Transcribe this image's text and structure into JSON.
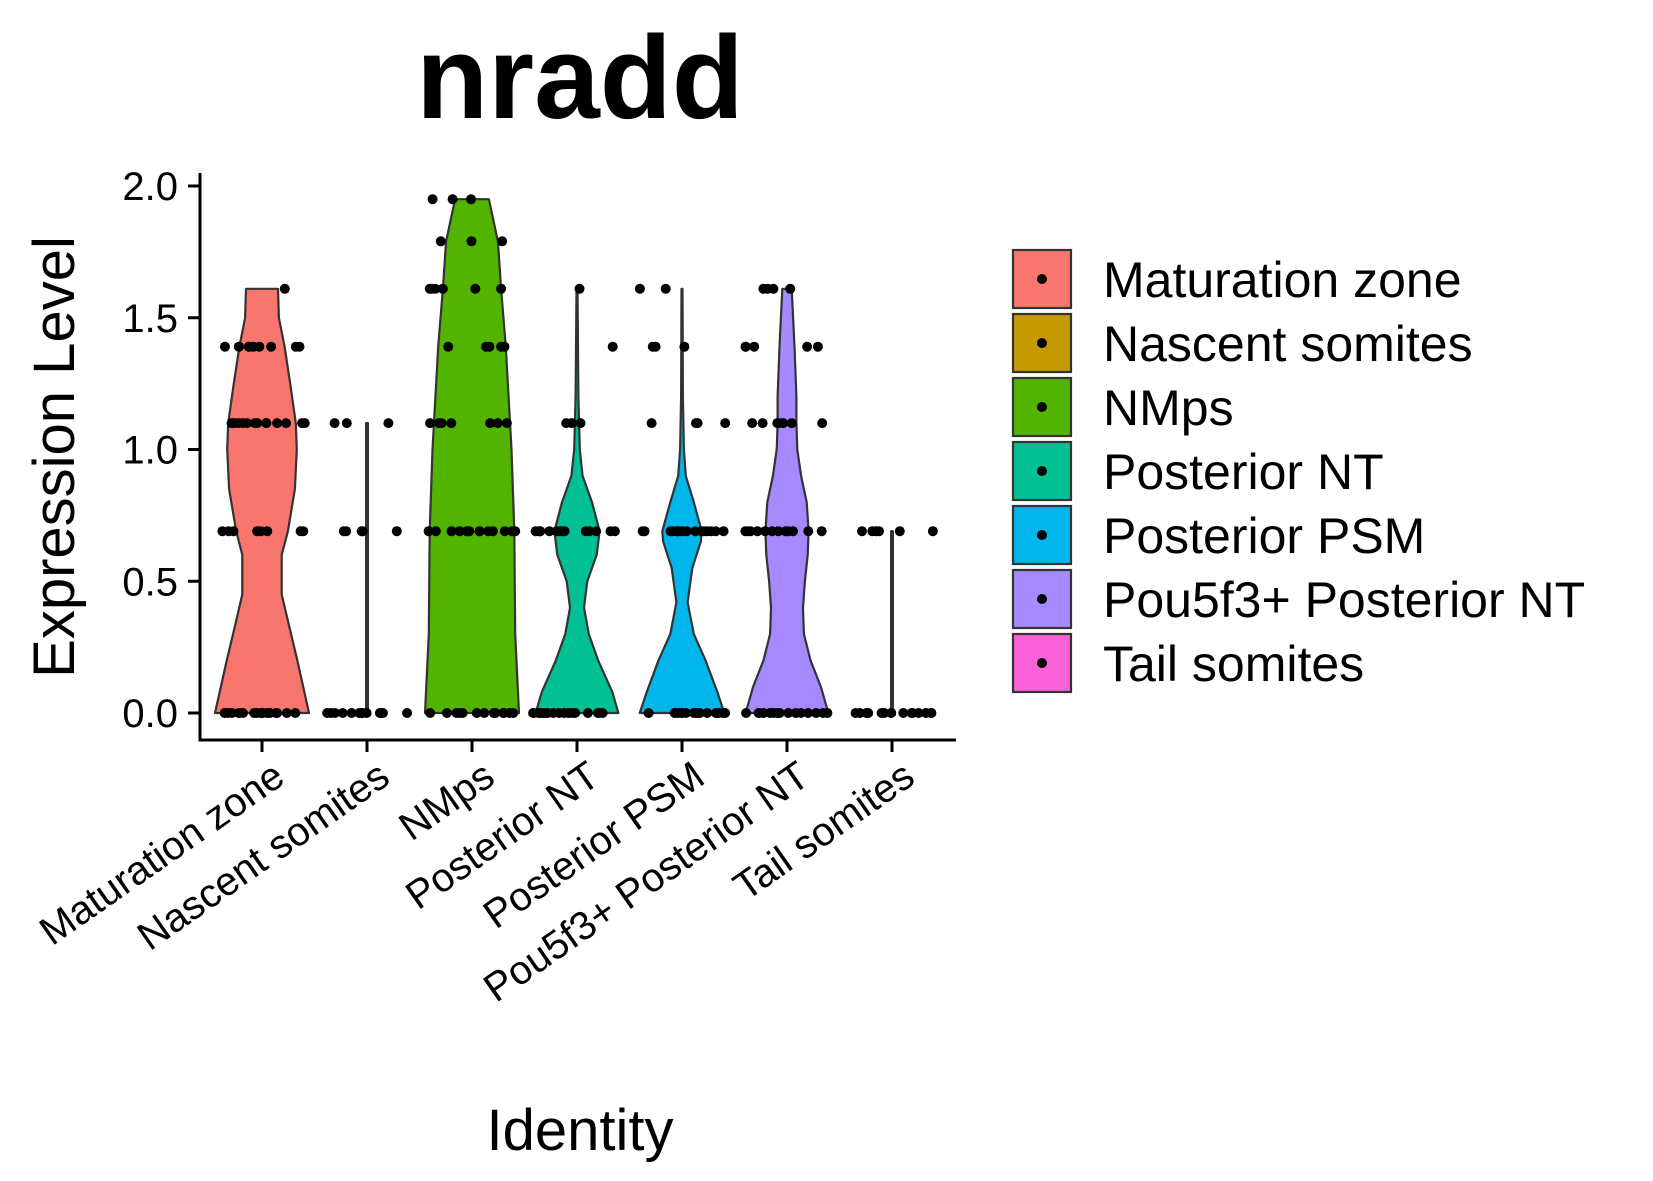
{
  "chart_data": {
    "type": "violin",
    "title": "nradd",
    "xlabel": "Identity",
    "ylabel": "Expression Level",
    "ylim": [
      0,
      2.0
    ],
    "yticks": [
      "0.0",
      "0.5",
      "1.0",
      "1.5",
      "2.0"
    ],
    "ytick_values": [
      0,
      0.5,
      1.0,
      1.5,
      2.0
    ],
    "categories": [
      "Maturation zone",
      "Nascent somites",
      "NMps",
      "Posterior NT",
      "Posterior PSM",
      "Pou5f3+ Posterior NT",
      "Tail somites"
    ],
    "colors": [
      "#F8766D",
      "#C49A00",
      "#53B400",
      "#00C094",
      "#00B6EB",
      "#A58AFF",
      "#FB61D7"
    ],
    "legend_position": "right",
    "grid": false,
    "violins": [
      {
        "name": "Maturation zone",
        "max": 1.61,
        "profile": [
          [
            0,
            1.0
          ],
          [
            0.2,
            0.75
          ],
          [
            0.35,
            0.55
          ],
          [
            0.45,
            0.42
          ],
          [
            0.6,
            0.42
          ],
          [
            0.69,
            0.55
          ],
          [
            0.85,
            0.7
          ],
          [
            1.0,
            0.74
          ],
          [
            1.1,
            0.72
          ],
          [
            1.25,
            0.6
          ],
          [
            1.39,
            0.48
          ],
          [
            1.5,
            0.36
          ],
          [
            1.61,
            0.34
          ]
        ]
      },
      {
        "name": "Nascent somites",
        "max": 1.1,
        "profile": [
          [
            0,
            0.02
          ],
          [
            1.1,
            0.02
          ]
        ]
      },
      {
        "name": "NMps",
        "max": 1.95,
        "profile": [
          [
            0,
            1.0
          ],
          [
            0.3,
            0.92
          ],
          [
            0.69,
            0.9
          ],
          [
            1.0,
            0.84
          ],
          [
            1.39,
            0.72
          ],
          [
            1.61,
            0.62
          ],
          [
            1.79,
            0.55
          ],
          [
            1.95,
            0.36
          ]
        ]
      },
      {
        "name": "Posterior NT",
        "max": 1.61,
        "profile": [
          [
            0,
            0.88
          ],
          [
            0.08,
            0.75
          ],
          [
            0.2,
            0.45
          ],
          [
            0.3,
            0.25
          ],
          [
            0.4,
            0.15
          ],
          [
            0.5,
            0.22
          ],
          [
            0.6,
            0.42
          ],
          [
            0.69,
            0.48
          ],
          [
            0.8,
            0.32
          ],
          [
            0.9,
            0.12
          ],
          [
            1.0,
            0.06
          ],
          [
            1.2,
            0.03
          ],
          [
            1.61,
            0.01
          ]
        ]
      },
      {
        "name": "Posterior PSM",
        "max": 1.61,
        "profile": [
          [
            0,
            0.9
          ],
          [
            0.08,
            0.75
          ],
          [
            0.2,
            0.5
          ],
          [
            0.3,
            0.25
          ],
          [
            0.42,
            0.12
          ],
          [
            0.55,
            0.22
          ],
          [
            0.65,
            0.4
          ],
          [
            0.69,
            0.42
          ],
          [
            0.8,
            0.25
          ],
          [
            0.9,
            0.08
          ],
          [
            1.0,
            0.04
          ],
          [
            1.2,
            0.02
          ],
          [
            1.61,
            0.01
          ]
        ]
      },
      {
        "name": "Pou5f3+ Posterior NT",
        "max": 1.61,
        "profile": [
          [
            0,
            0.88
          ],
          [
            0.1,
            0.72
          ],
          [
            0.2,
            0.5
          ],
          [
            0.3,
            0.36
          ],
          [
            0.4,
            0.34
          ],
          [
            0.5,
            0.38
          ],
          [
            0.6,
            0.44
          ],
          [
            0.69,
            0.46
          ],
          [
            0.8,
            0.42
          ],
          [
            0.9,
            0.3
          ],
          [
            1.0,
            0.22
          ],
          [
            1.1,
            0.2
          ],
          [
            1.2,
            0.2
          ],
          [
            1.39,
            0.16
          ],
          [
            1.5,
            0.13
          ],
          [
            1.61,
            0.1
          ]
        ]
      },
      {
        "name": "Tail somites",
        "max": 0.69,
        "profile": [
          [
            0,
            0.02
          ],
          [
            0.69,
            0.02
          ]
        ]
      }
    ],
    "points": [
      [
        [
          0,
          18
        ],
        [
          0.69,
          8
        ],
        [
          1.1,
          14
        ],
        [
          1.39,
          10
        ],
        [
          1.61,
          1
        ]
      ],
      [
        [
          0,
          14
        ],
        [
          0.69,
          5
        ],
        [
          1.1,
          3
        ]
      ],
      [
        [
          0,
          13
        ],
        [
          0.69,
          14
        ],
        [
          1.1,
          7
        ],
        [
          1.39,
          5
        ],
        [
          1.61,
          6
        ],
        [
          1.79,
          3
        ],
        [
          1.95,
          3
        ]
      ],
      [
        [
          0,
          18
        ],
        [
          0.69,
          14
        ],
        [
          1.1,
          3
        ],
        [
          1.39,
          1
        ],
        [
          1.61,
          1
        ]
      ],
      [
        [
          0,
          18
        ],
        [
          0.69,
          16
        ],
        [
          1.1,
          4
        ],
        [
          1.39,
          3
        ],
        [
          1.61,
          2
        ]
      ],
      [
        [
          0,
          16
        ],
        [
          0.69,
          12
        ],
        [
          1.1,
          7
        ],
        [
          1.39,
          5
        ],
        [
          1.61,
          4
        ]
      ],
      [
        [
          0,
          14
        ],
        [
          0.69,
          6
        ]
      ]
    ]
  }
}
